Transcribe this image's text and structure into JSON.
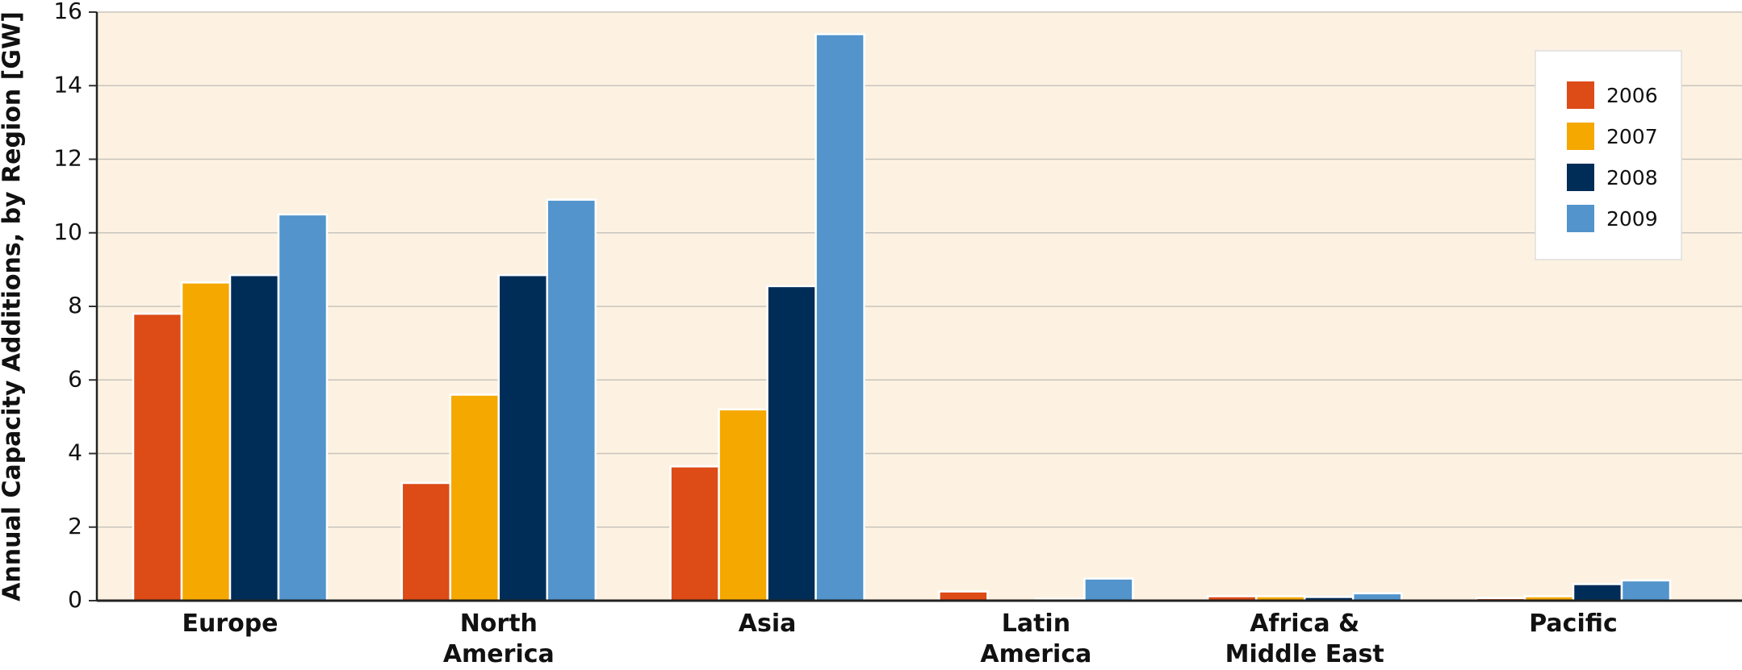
{
  "chart_data": {
    "type": "bar",
    "y_label": "Annual Capacity Additions, by Region [GW]",
    "categories": [
      "Europe",
      "North America",
      "Asia",
      "Latin America",
      "Africa & Middle East",
      "Pacific"
    ],
    "series": [
      {
        "name": "2006",
        "color": "#dd4b17",
        "values": [
          7.8,
          3.2,
          3.65,
          0.25,
          0.12,
          0.07
        ]
      },
      {
        "name": "2007",
        "color": "#f5a800",
        "values": [
          8.65,
          5.6,
          5.2,
          0,
          0.12,
          0.12
        ]
      },
      {
        "name": "2008",
        "color": "#002d57",
        "values": [
          8.85,
          8.85,
          8.55,
          0.05,
          0.1,
          0.45
        ]
      },
      {
        "name": "2009",
        "color": "#5294cb",
        "values": [
          10.5,
          10.9,
          15.4,
          0.6,
          0.2,
          0.55
        ]
      }
    ],
    "ylim": [
      0,
      16
    ],
    "yticks": [
      0,
      2,
      4,
      6,
      8,
      10,
      12,
      14,
      16
    ],
    "grid": true,
    "legend": "top-right"
  }
}
